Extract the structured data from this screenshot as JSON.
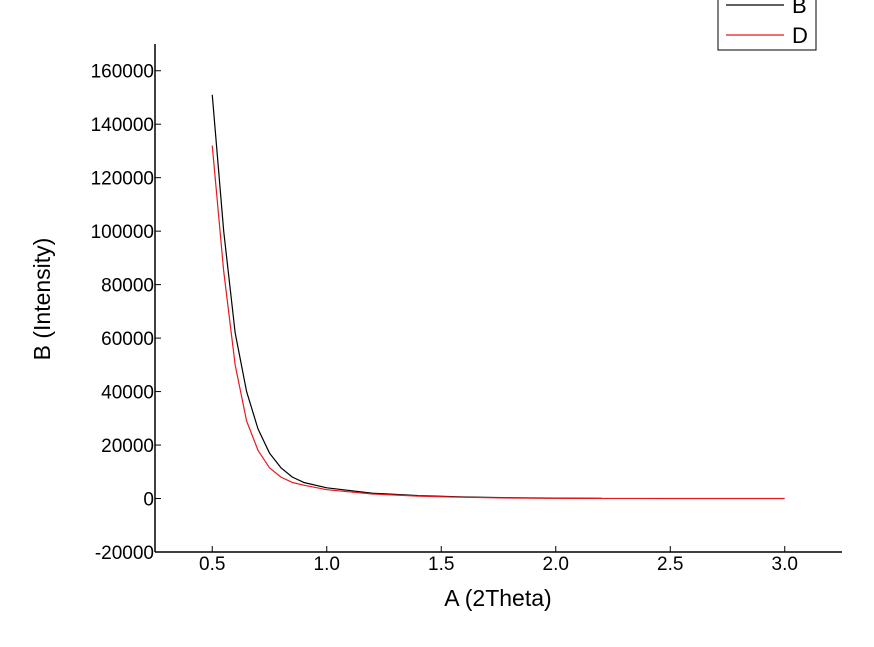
{
  "chart_data": {
    "type": "line",
    "xlabel": "A (2Theta)",
    "ylabel": "B (Intensity)",
    "xlim": [
      0.25,
      3.25
    ],
    "ylim": [
      -20000,
      170000
    ],
    "x_ticks": [
      0.5,
      1.0,
      1.5,
      2.0,
      2.5,
      3.0
    ],
    "x_tick_labels": [
      "0.5",
      "1.0",
      "1.5",
      "2.0",
      "2.5",
      "3.0"
    ],
    "y_ticks": [
      -20000,
      0,
      20000,
      40000,
      60000,
      80000,
      100000,
      120000,
      140000,
      160000
    ],
    "y_tick_labels": [
      "-20000",
      "0",
      "20000",
      "40000",
      "60000",
      "80000",
      "100000",
      "120000",
      "140000",
      "160000"
    ],
    "grid": false,
    "legend_position": "top-right",
    "series": [
      {
        "name": "B",
        "color": "#000000",
        "x": [
          0.5,
          0.55,
          0.6,
          0.65,
          0.7,
          0.75,
          0.8,
          0.85,
          0.9,
          1.0,
          1.2,
          1.4,
          1.6,
          1.8,
          2.0,
          2.2
        ],
        "y": [
          151000,
          100000,
          62000,
          40000,
          26000,
          17000,
          11500,
          8000,
          6000,
          4000,
          2000,
          1100,
          600,
          300,
          150,
          50
        ]
      },
      {
        "name": "D",
        "color": "#e8191e",
        "x": [
          0.5,
          0.55,
          0.6,
          0.65,
          0.7,
          0.75,
          0.8,
          0.85,
          0.9,
          1.0,
          1.2,
          1.4,
          1.6,
          1.8,
          2.0,
          2.2,
          2.5,
          3.0
        ],
        "y": [
          132000,
          85000,
          50000,
          29000,
          18000,
          11500,
          8000,
          6000,
          5000,
          3300,
          1700,
          900,
          450,
          200,
          100,
          40,
          10,
          0
        ]
      }
    ]
  }
}
